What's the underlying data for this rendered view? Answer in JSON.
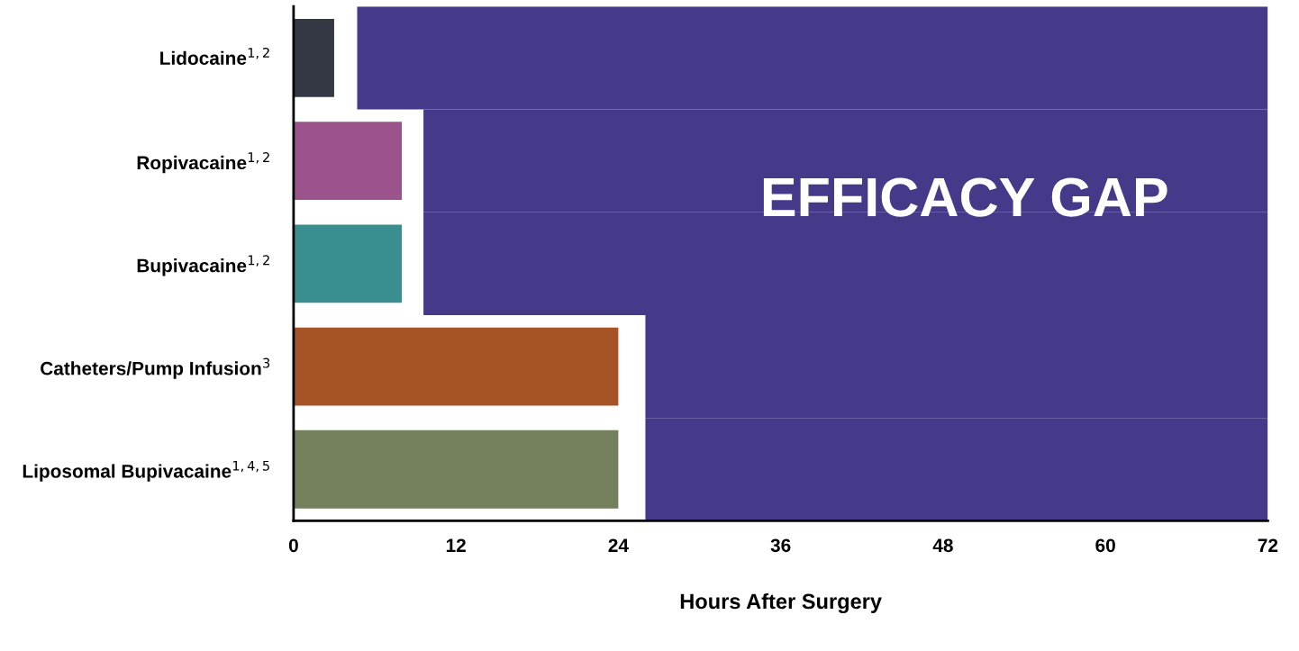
{
  "chart_data": {
    "type": "bar",
    "orientation": "horizontal",
    "xlabel": "Hours After Surgery",
    "categories": [
      "Lidocaine$^{1,2}$",
      "Ropivacaine$^{1,2}$",
      "Bupivacaine$^{1,2}$",
      "Catheters/Pump Infusion$^{3}$",
      "Liposomal Bupivacaine$^{1,4,5}$"
    ],
    "series": [
      {
        "values": [
          3,
          8,
          8,
          24,
          24
        ],
        "colors": [
          "#343845",
          "#9b538c",
          "#3a8e8f",
          "#a65325",
          "#74805c"
        ]
      },
      {
        "name": "EFFICACY GAP",
        "color": "#45398a",
        "base": [
          4.7,
          9.6,
          9.6,
          26,
          26
        ],
        "values": [
          67.3,
          62.4,
          62.4,
          46,
          46
        ]
      }
    ],
    "xlim": [
      0,
      72
    ],
    "xticks": [
      0,
      12,
      24,
      36,
      48,
      60,
      72
    ],
    "grid": false,
    "legend": false
  }
}
